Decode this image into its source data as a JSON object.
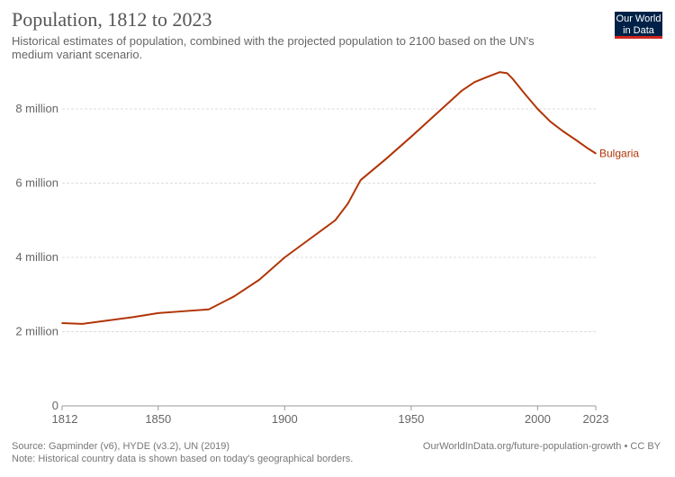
{
  "header": {
    "title": "Population, 1812 to 2023",
    "subtitle": "Historical estimates of population, combined with the projected population to 2100 based on the UN's medium variant scenario.",
    "logo": "Our World in Data"
  },
  "footer": {
    "source": "Source: Gapminder (v6), HYDE (v3.2), UN (2019)",
    "note": "Note: Historical country data is shown based on today's geographical borders.",
    "link": "OurWorldInData.org/future-population-growth • CC BY"
  },
  "chart_data": {
    "type": "line",
    "xlim": [
      1812,
      2023
    ],
    "ylim": [
      0,
      8000000
    ],
    "grid": "horizontal dashed",
    "xticks": [
      {
        "v": 1812,
        "label": "1812"
      },
      {
        "v": 1850,
        "label": "1850"
      },
      {
        "v": 1900,
        "label": "1900"
      },
      {
        "v": 1950,
        "label": "1950"
      },
      {
        "v": 2000,
        "label": "2000"
      },
      {
        "v": 2023,
        "label": "2023"
      }
    ],
    "yticks": [
      {
        "v": 0,
        "label": "0"
      },
      {
        "v": 2000000,
        "label": "2 million"
      },
      {
        "v": 4000000,
        "label": "4 million"
      },
      {
        "v": 6000000,
        "label": "6 million"
      },
      {
        "v": 8000000,
        "label": "8 million"
      }
    ],
    "series": [
      {
        "name": "Bulgaria",
        "color": "#b13507",
        "x": [
          1812,
          1820,
          1830,
          1840,
          1850,
          1860,
          1870,
          1880,
          1890,
          1900,
          1910,
          1920,
          1925,
          1930,
          1940,
          1950,
          1960,
          1970,
          1975,
          1980,
          1985,
          1988,
          1990,
          1995,
          2000,
          2005,
          2010,
          2015,
          2020,
          2023
        ],
        "y": [
          2230000,
          2210000,
          2300000,
          2390000,
          2500000,
          2550000,
          2600000,
          2950000,
          3400000,
          4000000,
          4500000,
          5000000,
          5450000,
          6080000,
          6650000,
          7250000,
          7870000,
          8490000,
          8720000,
          8860000,
          8990000,
          8960000,
          8820000,
          8400000,
          8000000,
          7660000,
          7400000,
          7170000,
          6930000,
          6800000
        ]
      }
    ]
  }
}
